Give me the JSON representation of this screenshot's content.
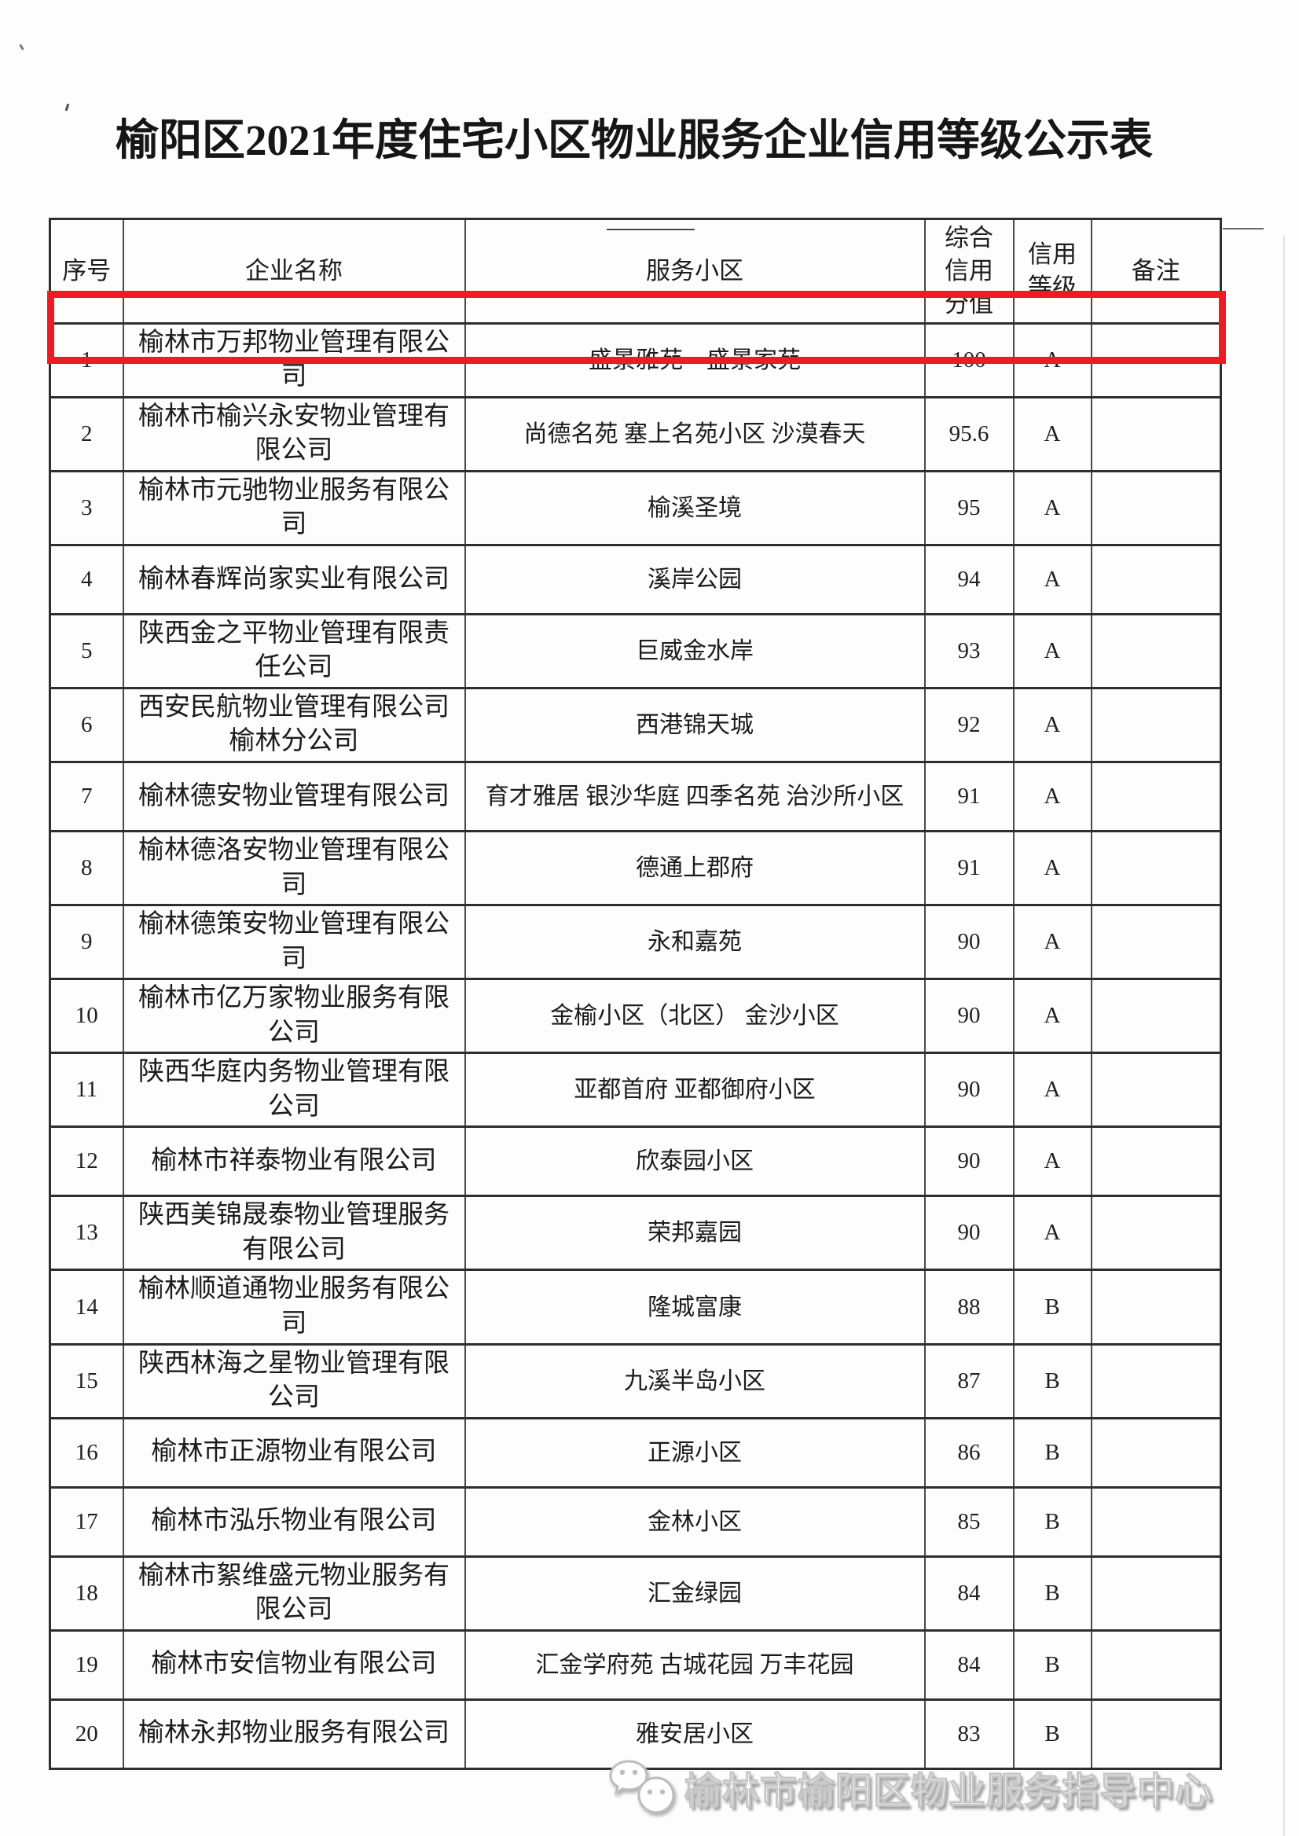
{
  "page": {
    "title": "榆阳区2021年度住宅小区物业服务企业信用等级公示表"
  },
  "table": {
    "headers": [
      {
        "key": "index",
        "label": "序号"
      },
      {
        "key": "company",
        "label": "企业名称"
      },
      {
        "key": "communities",
        "label": "服务小区"
      },
      {
        "key": "score",
        "label": "综合信用分值"
      },
      {
        "key": "grade",
        "label": "信用等级"
      },
      {
        "key": "remark",
        "label": "备注"
      }
    ],
    "rows": [
      {
        "index": "1",
        "company": "榆林市万邦物业管理有限公司",
        "communities": "盛景雅苑　盛景家苑",
        "score": "100",
        "grade": "A",
        "remark": ""
      },
      {
        "index": "2",
        "company": "榆林市榆兴永安物业管理有限公司",
        "communities": "尚德名苑 塞上名苑小区 沙漠春天",
        "score": "95.6",
        "grade": "A",
        "remark": ""
      },
      {
        "index": "3",
        "company": "榆林市元驰物业服务有限公司",
        "communities": "榆溪圣境",
        "score": "95",
        "grade": "A",
        "remark": ""
      },
      {
        "index": "4",
        "company": "榆林春辉尚家实业有限公司",
        "communities": "溪岸公园",
        "score": "94",
        "grade": "A",
        "remark": ""
      },
      {
        "index": "5",
        "company": "陕西金之平物业管理有限责任公司",
        "communities": "巨威金水岸",
        "score": "93",
        "grade": "A",
        "remark": ""
      },
      {
        "index": "6",
        "company": "西安民航物业管理有限公司榆林分公司",
        "communities": "西港锦天城",
        "score": "92",
        "grade": "A",
        "remark": ""
      },
      {
        "index": "7",
        "company": "榆林德安物业管理有限公司",
        "communities": "育才雅居 银沙华庭 四季名苑 治沙所小区",
        "score": "91",
        "grade": "A",
        "remark": ""
      },
      {
        "index": "8",
        "company": "榆林德洛安物业管理有限公司",
        "communities": "德通上郡府",
        "score": "91",
        "grade": "A",
        "remark": ""
      },
      {
        "index": "9",
        "company": "榆林德策安物业管理有限公司",
        "communities": "永和嘉苑",
        "score": "90",
        "grade": "A",
        "remark": ""
      },
      {
        "index": "10",
        "company": "榆林市亿万家物业服务有限公司",
        "communities": "金榆小区（北区） 金沙小区",
        "score": "90",
        "grade": "A",
        "remark": ""
      },
      {
        "index": "11",
        "company": "陕西华庭内务物业管理有限公司",
        "communities": "亚都首府 亚都御府小区",
        "score": "90",
        "grade": "A",
        "remark": ""
      },
      {
        "index": "12",
        "company": "榆林市祥泰物业有限公司",
        "communities": "欣泰园小区",
        "score": "90",
        "grade": "A",
        "remark": ""
      },
      {
        "index": "13",
        "company": "陕西美锦晟泰物业管理服务有限公司",
        "communities": "荣邦嘉园",
        "score": "90",
        "grade": "A",
        "remark": ""
      },
      {
        "index": "14",
        "company": "榆林顺道通物业服务有限公司",
        "communities": "隆城富康",
        "score": "88",
        "grade": "B",
        "remark": ""
      },
      {
        "index": "15",
        "company": "陕西林海之星物业管理有限公司",
        "communities": "九溪半岛小区",
        "score": "87",
        "grade": "B",
        "remark": ""
      },
      {
        "index": "16",
        "company": "榆林市正源物业有限公司",
        "communities": "正源小区",
        "score": "86",
        "grade": "B",
        "remark": ""
      },
      {
        "index": "17",
        "company": "榆林市泓乐物业有限公司",
        "communities": "金林小区",
        "score": "85",
        "grade": "B",
        "remark": ""
      },
      {
        "index": "18",
        "company": "榆林市絮维盛元物业服务有限公司",
        "communities": "汇金绿园",
        "score": "84",
        "grade": "B",
        "remark": ""
      },
      {
        "index": "19",
        "company": "榆林市安信物业有限公司",
        "communities": "汇金学府苑 古城花园 万丰花园",
        "score": "84",
        "grade": "B",
        "remark": ""
      },
      {
        "index": "20",
        "company": "榆林永邦物业服务有限公司",
        "communities": "雅安居小区",
        "score": "83",
        "grade": "B",
        "remark": ""
      }
    ]
  },
  "highlight": {
    "highlighted_row_index": "1",
    "color": "#ec1c24"
  },
  "footer": {
    "watermark_text": "榆林市榆阳区物业服务指导中心",
    "icon": "wechat-icon"
  }
}
